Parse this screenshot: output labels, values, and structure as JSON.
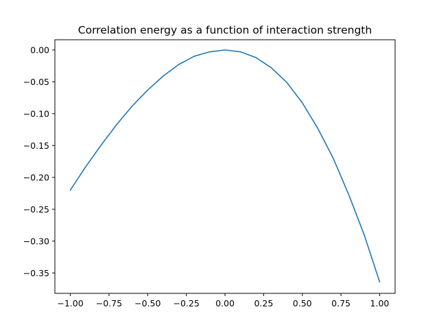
{
  "chart_data": {
    "type": "line",
    "title": "Correlation energy as a function of interaction strength",
    "xlabel": "",
    "ylabel": "",
    "xlim": [
      -1.1,
      1.1
    ],
    "ylim": [
      -0.382,
      0.016
    ],
    "xticks": [
      -1.0,
      -0.75,
      -0.5,
      -0.25,
      0.0,
      0.25,
      0.5,
      0.75,
      1.0
    ],
    "xtick_labels": [
      "−1.00",
      "−0.75",
      "−0.50",
      "−0.25",
      "0.00",
      "0.25",
      "0.50",
      "0.75",
      "1.00"
    ],
    "yticks": [
      0.0,
      -0.05,
      -0.1,
      -0.15,
      -0.2,
      -0.25,
      -0.3,
      -0.35
    ],
    "ytick_labels": [
      "0.00",
      "−0.05",
      "−0.10",
      "−0.15",
      "−0.20",
      "−0.25",
      "−0.30",
      "−0.35"
    ],
    "grid": false,
    "legend": "none",
    "series": [
      {
        "color": "#1f77b4",
        "x": [
          -1.0,
          -0.9,
          -0.8,
          -0.7,
          -0.6,
          -0.5,
          -0.4,
          -0.3,
          -0.2,
          -0.1,
          0.0,
          0.1,
          0.2,
          0.3,
          0.4,
          0.5,
          0.6,
          0.7,
          0.8,
          0.9,
          1.0
        ],
        "y": [
          -0.22,
          -0.183,
          -0.149,
          -0.117,
          -0.088,
          -0.063,
          -0.041,
          -0.023,
          -0.01,
          -0.003,
          0.0,
          -0.003,
          -0.012,
          -0.028,
          -0.051,
          -0.083,
          -0.123,
          -0.17,
          -0.227,
          -0.29,
          -0.364
        ]
      }
    ]
  }
}
